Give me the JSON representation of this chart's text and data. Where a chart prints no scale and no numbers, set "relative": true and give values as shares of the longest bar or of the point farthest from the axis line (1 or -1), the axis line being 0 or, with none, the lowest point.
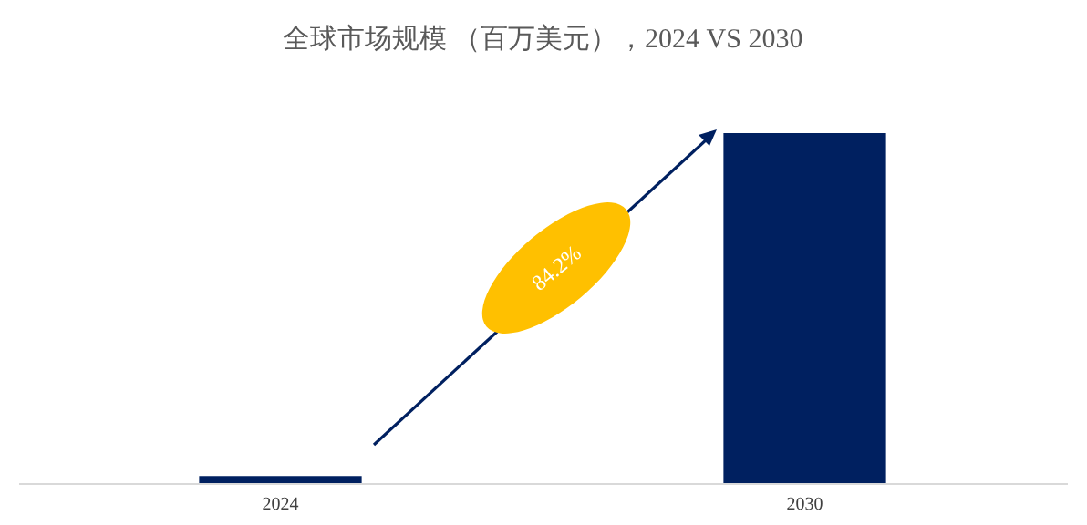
{
  "chart_data": {
    "type": "bar",
    "title": "全球市场规模 （百万美元），2024 VS 2030",
    "categories": [
      "2024",
      "2030"
    ],
    "values": [
      0.02,
      1
    ],
    "color": "#002060",
    "relative": true,
    "annotations": [
      "84.2%"
    ]
  }
}
